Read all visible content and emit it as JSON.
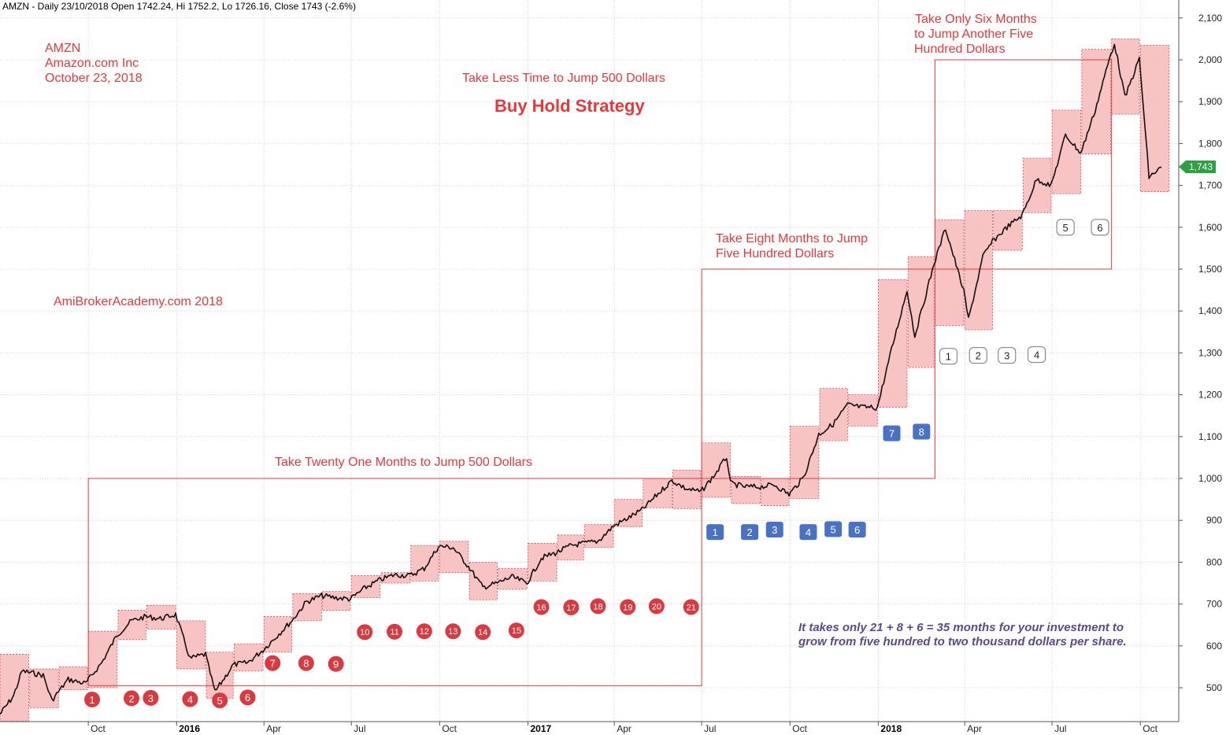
{
  "header": "AMZN - Daily 23/10/2018 Open 1742.24, Hi 1752.2, Lo 1726.16, Close 1743 (-2.6%)",
  "annotations": {
    "ticker": "AMZN",
    "company": "Amazon.com Inc",
    "date": "October 23, 2018",
    "site": "AmiBrokerAcademy.com  2018",
    "less_time": "Take Less Time to Jump 500 Dollars",
    "strategy": "Buy Hold Strategy",
    "twenty_one": "Take Twenty One Months to Jump 500 Dollars",
    "eight_line1": "Take Eight Months to Jump",
    "eight_line2": "Five Hundred Dollars",
    "six_line1": "Take Only Six Months",
    "six_line2": "to Jump Another Five",
    "six_line3": "Hundred Dollars",
    "conclusion_line1": "It takes only 21 + 8 + 6 = 35 months for your investment to",
    "conclusion_line2": "grow from five hundred to two thousand dollars per share."
  },
  "last_price_label": "1,743",
  "colors": {
    "accent_red": "#e8383b",
    "marker_red": "#d93a3f",
    "marker_blue": "#4a72c4",
    "band_fill": "#f6b8b8",
    "price_tag": "#2ea043",
    "conclusion_text": "#5a4a8a"
  },
  "chart_data": {
    "type": "line",
    "title": "",
    "xlabel": "",
    "ylabel": "",
    "ylim": [
      420,
      2110
    ],
    "xlim": [
      "2015-07-01",
      "2018-11-10"
    ],
    "y_ticks": [
      {
        "value": 500,
        "label": "500"
      },
      {
        "value": 600,
        "label": "600"
      },
      {
        "value": 700,
        "label": "700"
      },
      {
        "value": 800,
        "label": "800"
      },
      {
        "value": 900,
        "label": "900"
      },
      {
        "value": 1000,
        "label": "1,000"
      },
      {
        "value": 1100,
        "label": "1,100"
      },
      {
        "value": 1200,
        "label": "1,200"
      },
      {
        "value": 1300,
        "label": "1,300"
      },
      {
        "value": 1400,
        "label": "1,400"
      },
      {
        "value": 1500,
        "label": "1,500"
      },
      {
        "value": 1600,
        "label": "1,600"
      },
      {
        "value": 1700,
        "label": "1,700"
      },
      {
        "value": 1800,
        "label": "1,800"
      },
      {
        "value": 1900,
        "label": "1,900"
      },
      {
        "value": 2000,
        "label": "2,000"
      },
      {
        "value": 2100,
        "label": "2,100"
      }
    ],
    "x_ticks": [
      {
        "date": "2015-10-01",
        "label": "Oct",
        "bold": false
      },
      {
        "date": "2016-01-01",
        "label": "2016",
        "bold": true
      },
      {
        "date": "2016-04-01",
        "label": "Apr",
        "bold": false
      },
      {
        "date": "2016-07-01",
        "label": "Jul",
        "bold": false
      },
      {
        "date": "2016-10-01",
        "label": "Oct",
        "bold": false
      },
      {
        "date": "2017-01-01",
        "label": "2017",
        "bold": true
      },
      {
        "date": "2017-04-01",
        "label": "Apr",
        "bold": false
      },
      {
        "date": "2017-07-01",
        "label": "Jul",
        "bold": false
      },
      {
        "date": "2017-10-01",
        "label": "Oct",
        "bold": false
      },
      {
        "date": "2018-01-01",
        "label": "2018",
        "bold": true
      },
      {
        "date": "2018-04-01",
        "label": "Apr",
        "bold": false
      },
      {
        "date": "2018-07-01",
        "label": "Jul",
        "bold": false
      },
      {
        "date": "2018-10-01",
        "label": "Oct",
        "bold": false
      }
    ],
    "grid": true,
    "series": [
      {
        "values": [
          {
            "x": "2015-07-01",
            "y": 437
          },
          {
            "x": "2015-07-15",
            "y": 480
          },
          {
            "x": "2015-07-24",
            "y": 540
          },
          {
            "x": "2015-08-15",
            "y": 530
          },
          {
            "x": "2015-08-24",
            "y": 470
          },
          {
            "x": "2015-09-10",
            "y": 520
          },
          {
            "x": "2015-09-28",
            "y": 510
          },
          {
            "x": "2015-10-15",
            "y": 560
          },
          {
            "x": "2015-10-31",
            "y": 626
          },
          {
            "x": "2015-11-15",
            "y": 660
          },
          {
            "x": "2015-11-30",
            "y": 670
          },
          {
            "x": "2015-12-15",
            "y": 665
          },
          {
            "x": "2015-12-31",
            "y": 675
          },
          {
            "x": "2016-01-15",
            "y": 570
          },
          {
            "x": "2016-01-31",
            "y": 580
          },
          {
            "x": "2016-02-10",
            "y": 490
          },
          {
            "x": "2016-02-29",
            "y": 555
          },
          {
            "x": "2016-03-15",
            "y": 560
          },
          {
            "x": "2016-03-31",
            "y": 590
          },
          {
            "x": "2016-04-15",
            "y": 625
          },
          {
            "x": "2016-04-30",
            "y": 660
          },
          {
            "x": "2016-05-15",
            "y": 705
          },
          {
            "x": "2016-05-31",
            "y": 720
          },
          {
            "x": "2016-06-15",
            "y": 715
          },
          {
            "x": "2016-06-30",
            "y": 712
          },
          {
            "x": "2016-07-15",
            "y": 738
          },
          {
            "x": "2016-07-31",
            "y": 758
          },
          {
            "x": "2016-08-15",
            "y": 770
          },
          {
            "x": "2016-08-31",
            "y": 768
          },
          {
            "x": "2016-09-15",
            "y": 785
          },
          {
            "x": "2016-09-30",
            "y": 838
          },
          {
            "x": "2016-10-15",
            "y": 835
          },
          {
            "x": "2016-10-31",
            "y": 790
          },
          {
            "x": "2016-11-15",
            "y": 740
          },
          {
            "x": "2016-11-30",
            "y": 750
          },
          {
            "x": "2016-12-15",
            "y": 765
          },
          {
            "x": "2016-12-31",
            "y": 750
          },
          {
            "x": "2017-01-15",
            "y": 810
          },
          {
            "x": "2017-01-31",
            "y": 823
          },
          {
            "x": "2017-02-15",
            "y": 840
          },
          {
            "x": "2017-02-28",
            "y": 845
          },
          {
            "x": "2017-03-15",
            "y": 850
          },
          {
            "x": "2017-03-31",
            "y": 886
          },
          {
            "x": "2017-04-15",
            "y": 905
          },
          {
            "x": "2017-04-30",
            "y": 925
          },
          {
            "x": "2017-05-15",
            "y": 960
          },
          {
            "x": "2017-05-31",
            "y": 995
          },
          {
            "x": "2017-06-15",
            "y": 975
          },
          {
            "x": "2017-06-30",
            "y": 968
          },
          {
            "x": "2017-07-15",
            "y": 1010
          },
          {
            "x": "2017-07-27",
            "y": 1052
          },
          {
            "x": "2017-07-31",
            "y": 988
          },
          {
            "x": "2017-08-15",
            "y": 980
          },
          {
            "x": "2017-08-31",
            "y": 980
          },
          {
            "x": "2017-09-15",
            "y": 985
          },
          {
            "x": "2017-09-30",
            "y": 962
          },
          {
            "x": "2017-10-15",
            "y": 1002
          },
          {
            "x": "2017-10-31",
            "y": 1105
          },
          {
            "x": "2017-11-15",
            "y": 1130
          },
          {
            "x": "2017-11-30",
            "y": 1176
          },
          {
            "x": "2017-12-15",
            "y": 1170
          },
          {
            "x": "2017-12-31",
            "y": 1169
          },
          {
            "x": "2018-01-15",
            "y": 1310
          },
          {
            "x": "2018-01-31",
            "y": 1450
          },
          {
            "x": "2018-02-08",
            "y": 1340
          },
          {
            "x": "2018-02-28",
            "y": 1512
          },
          {
            "x": "2018-03-12",
            "y": 1598
          },
          {
            "x": "2018-03-31",
            "y": 1447
          },
          {
            "x": "2018-04-05",
            "y": 1380
          },
          {
            "x": "2018-04-20",
            "y": 1530
          },
          {
            "x": "2018-04-30",
            "y": 1566
          },
          {
            "x": "2018-05-15",
            "y": 1600
          },
          {
            "x": "2018-05-31",
            "y": 1629
          },
          {
            "x": "2018-06-15",
            "y": 1715
          },
          {
            "x": "2018-06-30",
            "y": 1699
          },
          {
            "x": "2018-07-15",
            "y": 1820
          },
          {
            "x": "2018-07-31",
            "y": 1777
          },
          {
            "x": "2018-08-15",
            "y": 1880
          },
          {
            "x": "2018-08-31",
            "y": 2012
          },
          {
            "x": "2018-09-04",
            "y": 2040
          },
          {
            "x": "2018-09-15",
            "y": 1910
          },
          {
            "x": "2018-09-30",
            "y": 2003
          },
          {
            "x": "2018-10-10",
            "y": 1720
          },
          {
            "x": "2018-10-23",
            "y": 1743
          }
        ]
      }
    ],
    "month_bands": [
      {
        "start": "2015-07-01",
        "end": "2015-07-31",
        "low": 420,
        "high": 580
      },
      {
        "start": "2015-08-01",
        "end": "2015-08-31",
        "low": 452,
        "high": 545
      },
      {
        "start": "2015-09-01",
        "end": "2015-09-30",
        "low": 495,
        "high": 550
      },
      {
        "start": "2015-10-01",
        "end": "2015-10-31",
        "low": 500,
        "high": 635
      },
      {
        "start": "2015-11-01",
        "end": "2015-11-30",
        "low": 615,
        "high": 685
      },
      {
        "start": "2015-12-01",
        "end": "2015-12-31",
        "low": 640,
        "high": 697
      },
      {
        "start": "2016-01-01",
        "end": "2016-01-31",
        "low": 545,
        "high": 660
      },
      {
        "start": "2016-02-01",
        "end": "2016-02-29",
        "low": 475,
        "high": 585
      },
      {
        "start": "2016-03-01",
        "end": "2016-03-31",
        "low": 540,
        "high": 605
      },
      {
        "start": "2016-04-01",
        "end": "2016-04-30",
        "low": 585,
        "high": 670
      },
      {
        "start": "2016-05-01",
        "end": "2016-05-31",
        "low": 660,
        "high": 725
      },
      {
        "start": "2016-06-01",
        "end": "2016-06-30",
        "low": 685,
        "high": 730
      },
      {
        "start": "2016-07-01",
        "end": "2016-07-31",
        "low": 715,
        "high": 768
      },
      {
        "start": "2016-08-01",
        "end": "2016-08-31",
        "low": 750,
        "high": 775
      },
      {
        "start": "2016-09-01",
        "end": "2016-09-30",
        "low": 755,
        "high": 840
      },
      {
        "start": "2016-10-01",
        "end": "2016-10-31",
        "low": 775,
        "high": 850
      },
      {
        "start": "2016-11-01",
        "end": "2016-11-30",
        "low": 710,
        "high": 800
      },
      {
        "start": "2016-12-01",
        "end": "2016-12-31",
        "low": 735,
        "high": 785
      },
      {
        "start": "2017-01-01",
        "end": "2017-01-31",
        "low": 755,
        "high": 845
      },
      {
        "start": "2017-02-01",
        "end": "2017-02-28",
        "low": 805,
        "high": 865
      },
      {
        "start": "2017-03-01",
        "end": "2017-03-31",
        "low": 835,
        "high": 890
      },
      {
        "start": "2017-04-01",
        "end": "2017-04-30",
        "low": 885,
        "high": 950
      },
      {
        "start": "2017-05-01",
        "end": "2017-05-31",
        "low": 930,
        "high": 1000
      },
      {
        "start": "2017-06-01",
        "end": "2017-06-30",
        "low": 928,
        "high": 1020
      },
      {
        "start": "2017-07-01",
        "end": "2017-07-31",
        "low": 955,
        "high": 1085
      },
      {
        "start": "2017-08-01",
        "end": "2017-08-31",
        "low": 940,
        "high": 1005
      },
      {
        "start": "2017-09-01",
        "end": "2017-09-30",
        "low": 935,
        "high": 1000
      },
      {
        "start": "2017-10-01",
        "end": "2017-10-31",
        "low": 952,
        "high": 1125
      },
      {
        "start": "2017-11-01",
        "end": "2017-11-30",
        "low": 1090,
        "high": 1215
      },
      {
        "start": "2017-12-01",
        "end": "2017-12-31",
        "low": 1125,
        "high": 1200
      },
      {
        "start": "2018-01-01",
        "end": "2018-01-31",
        "low": 1170,
        "high": 1475
      },
      {
        "start": "2018-02-01",
        "end": "2018-02-28",
        "low": 1265,
        "high": 1530
      },
      {
        "start": "2018-03-01",
        "end": "2018-03-31",
        "low": 1365,
        "high": 1618
      },
      {
        "start": "2018-04-01",
        "end": "2018-04-30",
        "low": 1355,
        "high": 1640
      },
      {
        "start": "2018-05-01",
        "end": "2018-05-31",
        "low": 1545,
        "high": 1640
      },
      {
        "start": "2018-06-01",
        "end": "2018-06-30",
        "low": 1635,
        "high": 1765
      },
      {
        "start": "2018-07-01",
        "end": "2018-07-31",
        "low": 1680,
        "high": 1880
      },
      {
        "start": "2018-08-01",
        "end": "2018-08-31",
        "low": 1775,
        "high": 2025
      },
      {
        "start": "2018-09-01",
        "end": "2018-09-30",
        "low": 1870,
        "high": 2050
      },
      {
        "start": "2018-10-01",
        "end": "2018-10-31",
        "low": 1685,
        "high": 2035
      }
    ],
    "range_boxes": [
      {
        "start": "2015-10-01",
        "end": "2017-07-01",
        "low": 505,
        "high": 1000
      },
      {
        "start": "2017-07-01",
        "end": "2018-03-01",
        "low": 1000,
        "high": 1500
      },
      {
        "start": "2018-03-01",
        "end": "2018-09-01",
        "low": 1500,
        "high": 2000
      }
    ],
    "markers": [
      {
        "label": "1",
        "x": "2015-10-05",
        "y": 472,
        "style": "red"
      },
      {
        "label": "2",
        "x": "2015-11-15",
        "y": 475,
        "style": "red"
      },
      {
        "label": "3",
        "x": "2015-12-05",
        "y": 476,
        "style": "red"
      },
      {
        "label": "4",
        "x": "2016-01-15",
        "y": 473,
        "style": "red"
      },
      {
        "label": "5",
        "x": "2016-02-15",
        "y": 470,
        "style": "red"
      },
      {
        "label": "6",
        "x": "2016-03-15",
        "y": 477,
        "style": "red"
      },
      {
        "label": "7",
        "x": "2016-04-10",
        "y": 559,
        "style": "red"
      },
      {
        "label": "8",
        "x": "2016-05-15",
        "y": 559,
        "style": "red"
      },
      {
        "label": "9",
        "x": "2016-06-15",
        "y": 557,
        "style": "red"
      },
      {
        "label": "10",
        "x": "2016-07-15",
        "y": 633,
        "style": "red"
      },
      {
        "label": "11",
        "x": "2016-08-15",
        "y": 634,
        "style": "red"
      },
      {
        "label": "12",
        "x": "2016-09-15",
        "y": 635,
        "style": "red"
      },
      {
        "label": "13",
        "x": "2016-10-15",
        "y": 635,
        "style": "red"
      },
      {
        "label": "14",
        "x": "2016-11-15",
        "y": 633,
        "style": "red"
      },
      {
        "label": "15",
        "x": "2016-12-20",
        "y": 637,
        "style": "red"
      },
      {
        "label": "16",
        "x": "2017-01-15",
        "y": 693,
        "style": "red"
      },
      {
        "label": "17",
        "x": "2017-02-15",
        "y": 692,
        "style": "red"
      },
      {
        "label": "18",
        "x": "2017-03-15",
        "y": 695,
        "style": "red"
      },
      {
        "label": "19",
        "x": "2017-04-15",
        "y": 693,
        "style": "red"
      },
      {
        "label": "20",
        "x": "2017-05-15",
        "y": 695,
        "style": "red"
      },
      {
        "label": "21",
        "x": "2017-06-20",
        "y": 693,
        "style": "red"
      },
      {
        "label": "1",
        "x": "2017-07-15",
        "y": 870,
        "style": "blue"
      },
      {
        "label": "2",
        "x": "2017-08-20",
        "y": 870,
        "style": "blue"
      },
      {
        "label": "3",
        "x": "2017-09-15",
        "y": 876,
        "style": "blue"
      },
      {
        "label": "4",
        "x": "2017-10-20",
        "y": 870,
        "style": "blue"
      },
      {
        "label": "5",
        "x": "2017-11-15",
        "y": 877,
        "style": "blue"
      },
      {
        "label": "6",
        "x": "2017-12-10",
        "y": 876,
        "style": "blue"
      },
      {
        "label": "7",
        "x": "2018-01-15",
        "y": 1106,
        "style": "blue"
      },
      {
        "label": "8",
        "x": "2018-02-15",
        "y": 1110,
        "style": "blue"
      },
      {
        "label": "1",
        "x": "2018-03-15",
        "y": 1290,
        "style": "white"
      },
      {
        "label": "2",
        "x": "2018-04-15",
        "y": 1292,
        "style": "white"
      },
      {
        "label": "3",
        "x": "2018-05-15",
        "y": 1292,
        "style": "white"
      },
      {
        "label": "4",
        "x": "2018-06-15",
        "y": 1294,
        "style": "white"
      },
      {
        "label": "5",
        "x": "2018-07-15",
        "y": 1598,
        "style": "white"
      },
      {
        "label": "6",
        "x": "2018-08-20",
        "y": 1598,
        "style": "white"
      }
    ]
  }
}
